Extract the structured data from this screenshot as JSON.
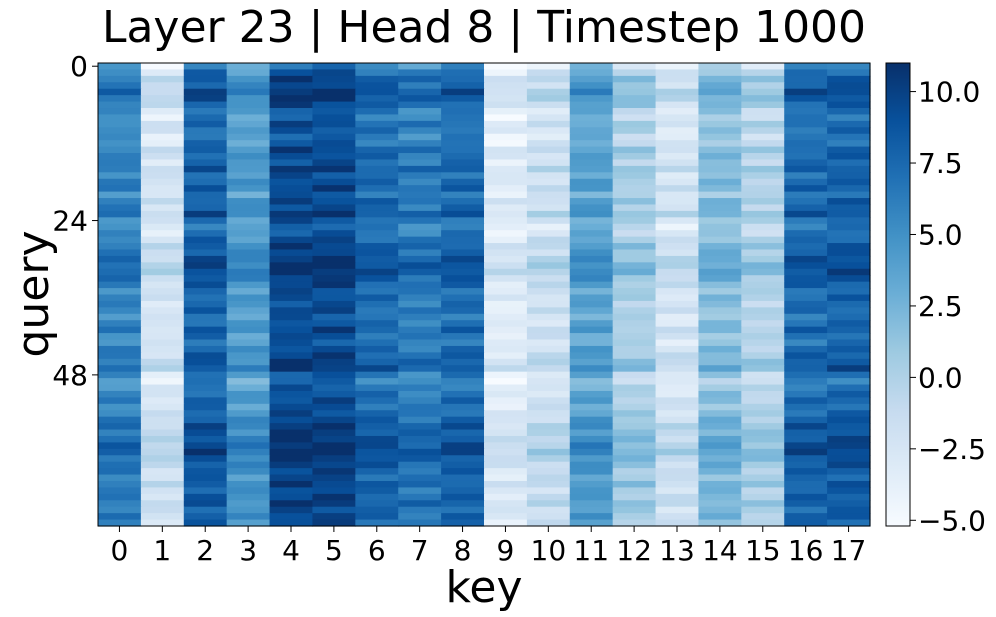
{
  "chart_data": {
    "type": "heatmap",
    "title": "Layer 23 | Head 8 | Timestep 1000",
    "xlabel": "key",
    "ylabel": "query",
    "x_ticks": [
      "0",
      "1",
      "2",
      "3",
      "4",
      "5",
      "6",
      "7",
      "8",
      "9",
      "10",
      "11",
      "12",
      "13",
      "14",
      "15",
      "16",
      "17"
    ],
    "y_ticks": [
      {
        "value": 0,
        "label": "0"
      },
      {
        "value": 24,
        "label": "24"
      },
      {
        "value": 48,
        "label": "48"
      }
    ],
    "n_rows": 72,
    "colorbar": {
      "range": [
        -5.2,
        11.0
      ],
      "ticks": [
        {
          "value": 10.0,
          "label": "10.0"
        },
        {
          "value": 7.5,
          "label": "7.5"
        },
        {
          "value": 5.0,
          "label": "5.0"
        },
        {
          "value": 2.5,
          "label": "2.5"
        },
        {
          "value": 0.0,
          "label": "0.0"
        },
        {
          "value": -2.5,
          "label": "−2.5"
        },
        {
          "value": -5.0,
          "label": "−5.0"
        }
      ]
    },
    "colormap": "Blues",
    "column_profile": [
      5.0,
      -3.0,
      7.0,
      3.5,
      8.5,
      8.5,
      6.5,
      5.5,
      6.5,
      -4.0,
      -2.5,
      3.0,
      -0.5,
      -3.0,
      1.0,
      -1.0,
      6.5,
      7.0
    ],
    "row_profile": [
      -1.5,
      0.5,
      2.0,
      1.5,
      3.0,
      2.5,
      1.5,
      0.0,
      -0.5,
      1.0,
      0.5,
      -0.5,
      0.0,
      1.5,
      1.0,
      0.5,
      2.0,
      0.5,
      1.0,
      1.5,
      0.0,
      1.5,
      1.0,
      2.5,
      0.5,
      -0.5,
      0.0,
      1.0,
      2.0,
      1.5,
      2.5,
      3.0,
      3.0,
      2.0,
      1.5,
      0.5,
      1.0,
      0.5,
      1.0,
      0.0,
      0.5,
      1.5,
      0.5,
      0.0,
      1.0,
      1.5,
      2.0,
      2.5,
      0.0,
      -1.0,
      0.0,
      0.5,
      1.0,
      0.5,
      1.0,
      1.5,
      2.5,
      2.0,
      2.5,
      3.0,
      3.5,
      2.5,
      2.0,
      1.5,
      1.0,
      2.0,
      1.0,
      1.5,
      2.0,
      1.0,
      1.5,
      1.0
    ]
  }
}
